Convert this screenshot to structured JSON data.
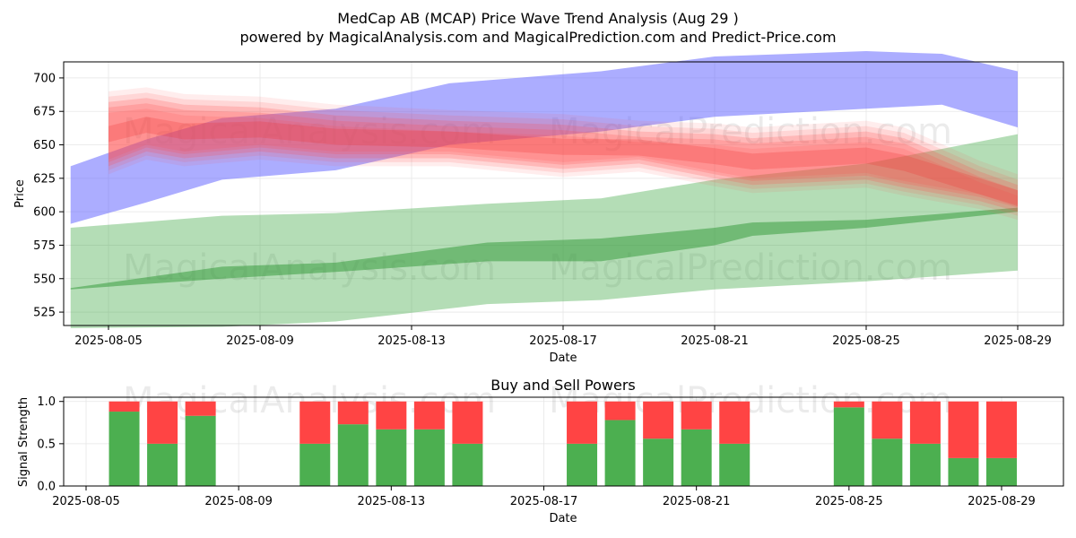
{
  "title_line1": "MedCap AB (MCAP) Price Wave Trend Analysis (Aug 29 )",
  "title_line2": "powered by MagicalAnalysis.com and MagicalPrediction.com and Predict-Price.com",
  "watermarks": [
    "MagicalAnalysis.com",
    "MagicalPrediction.com"
  ],
  "colors": {
    "buy": "#4caf50",
    "sell": "#ff4444",
    "blue_band": "#a9abfd",
    "green_band": "#b0d8b0",
    "red_band": "#ff6b6b"
  },
  "chart_data": [
    {
      "type": "area",
      "title": "",
      "xlabel": "Date",
      "ylabel": "Price",
      "ylim": [
        515,
        712
      ],
      "y_ticks": [
        525,
        550,
        575,
        600,
        625,
        650,
        675,
        700
      ],
      "x_ticks": [
        "2025-08-05",
        "2025-08-09",
        "2025-08-13",
        "2025-08-17",
        "2025-08-21",
        "2025-08-25",
        "2025-08-29"
      ],
      "grid": true,
      "series": [
        {
          "kind": "blue-band",
          "x": [
            "2025-08-04",
            "2025-08-06",
            "2025-08-08",
            "2025-08-11",
            "2025-08-14",
            "2025-08-18",
            "2025-08-21",
            "2025-08-25",
            "2025-08-27",
            "2025-08-29"
          ],
          "upper": [
            634,
            654,
            670,
            677,
            696,
            705,
            716,
            720,
            718,
            705
          ],
          "lower": [
            591,
            607,
            624,
            631,
            650,
            660,
            671,
            677,
            680,
            663
          ]
        },
        {
          "kind": "green-band-outer",
          "x": [
            "2025-08-04",
            "2025-08-08",
            "2025-08-11",
            "2025-08-15",
            "2025-08-18",
            "2025-08-21",
            "2025-08-25",
            "2025-08-29"
          ],
          "upper": [
            588,
            597,
            599,
            606,
            610,
            624,
            636,
            658
          ],
          "lower": [
            513,
            514,
            518,
            531,
            534,
            542,
            548,
            556
          ]
        },
        {
          "kind": "green-band-inner",
          "x": [
            "2025-08-04",
            "2025-08-08",
            "2025-08-11",
            "2025-08-15",
            "2025-08-18",
            "2025-08-21",
            "2025-08-22",
            "2025-08-25",
            "2025-08-29"
          ],
          "upper": [
            543,
            559,
            562,
            577,
            580,
            588,
            592,
            594,
            603
          ],
          "lower": [
            542,
            550,
            555,
            563,
            563,
            575,
            582,
            588,
            600
          ]
        },
        {
          "kind": "red-band",
          "x": [
            "2025-08-05",
            "2025-08-06",
            "2025-08-07",
            "2025-08-09",
            "2025-08-11",
            "2025-08-14",
            "2025-08-17",
            "2025-08-19",
            "2025-08-21",
            "2025-08-22",
            "2025-08-25",
            "2025-08-26",
            "2025-08-28",
            "2025-08-29"
          ],
          "upper": [
            682,
            685,
            680,
            678,
            672,
            668,
            665,
            660,
            658,
            655,
            660,
            655,
            630,
            620
          ],
          "lower": [
            634,
            645,
            640,
            645,
            640,
            640,
            632,
            636,
            625,
            620,
            624,
            618,
            608,
            600
          ]
        }
      ]
    },
    {
      "type": "bar",
      "title": "Buy and Sell Powers",
      "xlabel": "Date",
      "ylabel": "Signal Strength",
      "ylim": [
        0,
        1.05
      ],
      "y_ticks": [
        "0.0",
        "0.5",
        "1.0"
      ],
      "x_ticks": [
        "2025-08-05",
        "2025-08-09",
        "2025-08-13",
        "2025-08-17",
        "2025-08-21",
        "2025-08-25",
        "2025-08-29"
      ],
      "categories": [
        "2025-08-06",
        "2025-08-07",
        "2025-08-08",
        "2025-08-11",
        "2025-08-12",
        "2025-08-13",
        "2025-08-14",
        "2025-08-15",
        "2025-08-18",
        "2025-08-19",
        "2025-08-20",
        "2025-08-21",
        "2025-08-22",
        "2025-08-25",
        "2025-08-26",
        "2025-08-27",
        "2025-08-28",
        "2025-08-29"
      ],
      "series": [
        {
          "name": "Buy",
          "values": [
            0.88,
            0.5,
            0.83,
            0.5,
            0.73,
            0.67,
            0.67,
            0.5,
            0.5,
            0.78,
            0.56,
            0.67,
            0.5,
            0.93,
            0.56,
            0.5,
            0.33,
            0.33
          ]
        },
        {
          "name": "Sell",
          "values": [
            0.12,
            0.5,
            0.17,
            0.5,
            0.27,
            0.33,
            0.33,
            0.5,
            0.5,
            0.22,
            0.44,
            0.33,
            0.5,
            0.07,
            0.44,
            0.5,
            0.67,
            0.67
          ]
        }
      ]
    }
  ]
}
